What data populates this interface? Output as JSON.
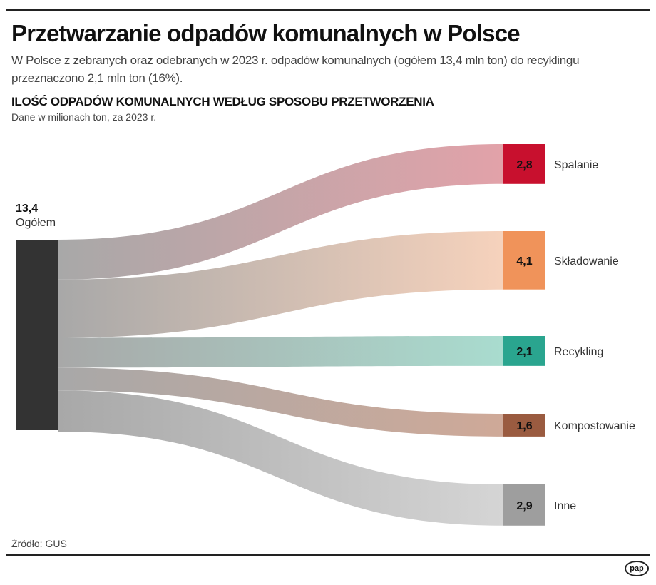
{
  "header": {
    "title": "Przetwarzanie odpadów komunalnych w Polsce",
    "subtitle": "W Polsce z zebranych oraz odebranych w 2023 r. odpadów komunalnych (ogółem 13,4 mln ton) do recyklingu przeznaczono 2,1 mln ton (16%)."
  },
  "chart_data": {
    "type": "sankey",
    "title": "ILOŚĆ ODPADÓW KOMUNALNYCH WEDŁUG SPOSOBU PRZETWORZENIA",
    "note": "Dane w milionach ton, za 2023 r.",
    "source": {
      "label": "Ogółem",
      "value": 13.4,
      "value_label": "13,4",
      "color": "#333333"
    },
    "targets": [
      {
        "label": "Spalanie",
        "value": 2.8,
        "value_label": "2,8",
        "color": "#c8102e",
        "flow_color": "#e2a2a9"
      },
      {
        "label": "Składowanie",
        "value": 4.1,
        "value_label": "4,1",
        "color": "#f0935a",
        "flow_color": "#f6d2bc"
      },
      {
        "label": "Recykling",
        "value": 2.1,
        "value_label": "2,1",
        "color": "#2aa58f",
        "flow_color": "#a9dccf"
      },
      {
        "label": "Kompostowanie",
        "value": 1.6,
        "value_label": "1,6",
        "color": "#9a5b40",
        "flow_color": "#cfa998"
      },
      {
        "label": "Inne",
        "value": 2.9,
        "value_label": "2,9",
        "color": "#9e9e9e",
        "flow_color": "#d5d5d5"
      }
    ],
    "flow_start_color": "#a8a8a8"
  },
  "footer": {
    "source": "Źródło: GUS",
    "logo": "pap"
  }
}
